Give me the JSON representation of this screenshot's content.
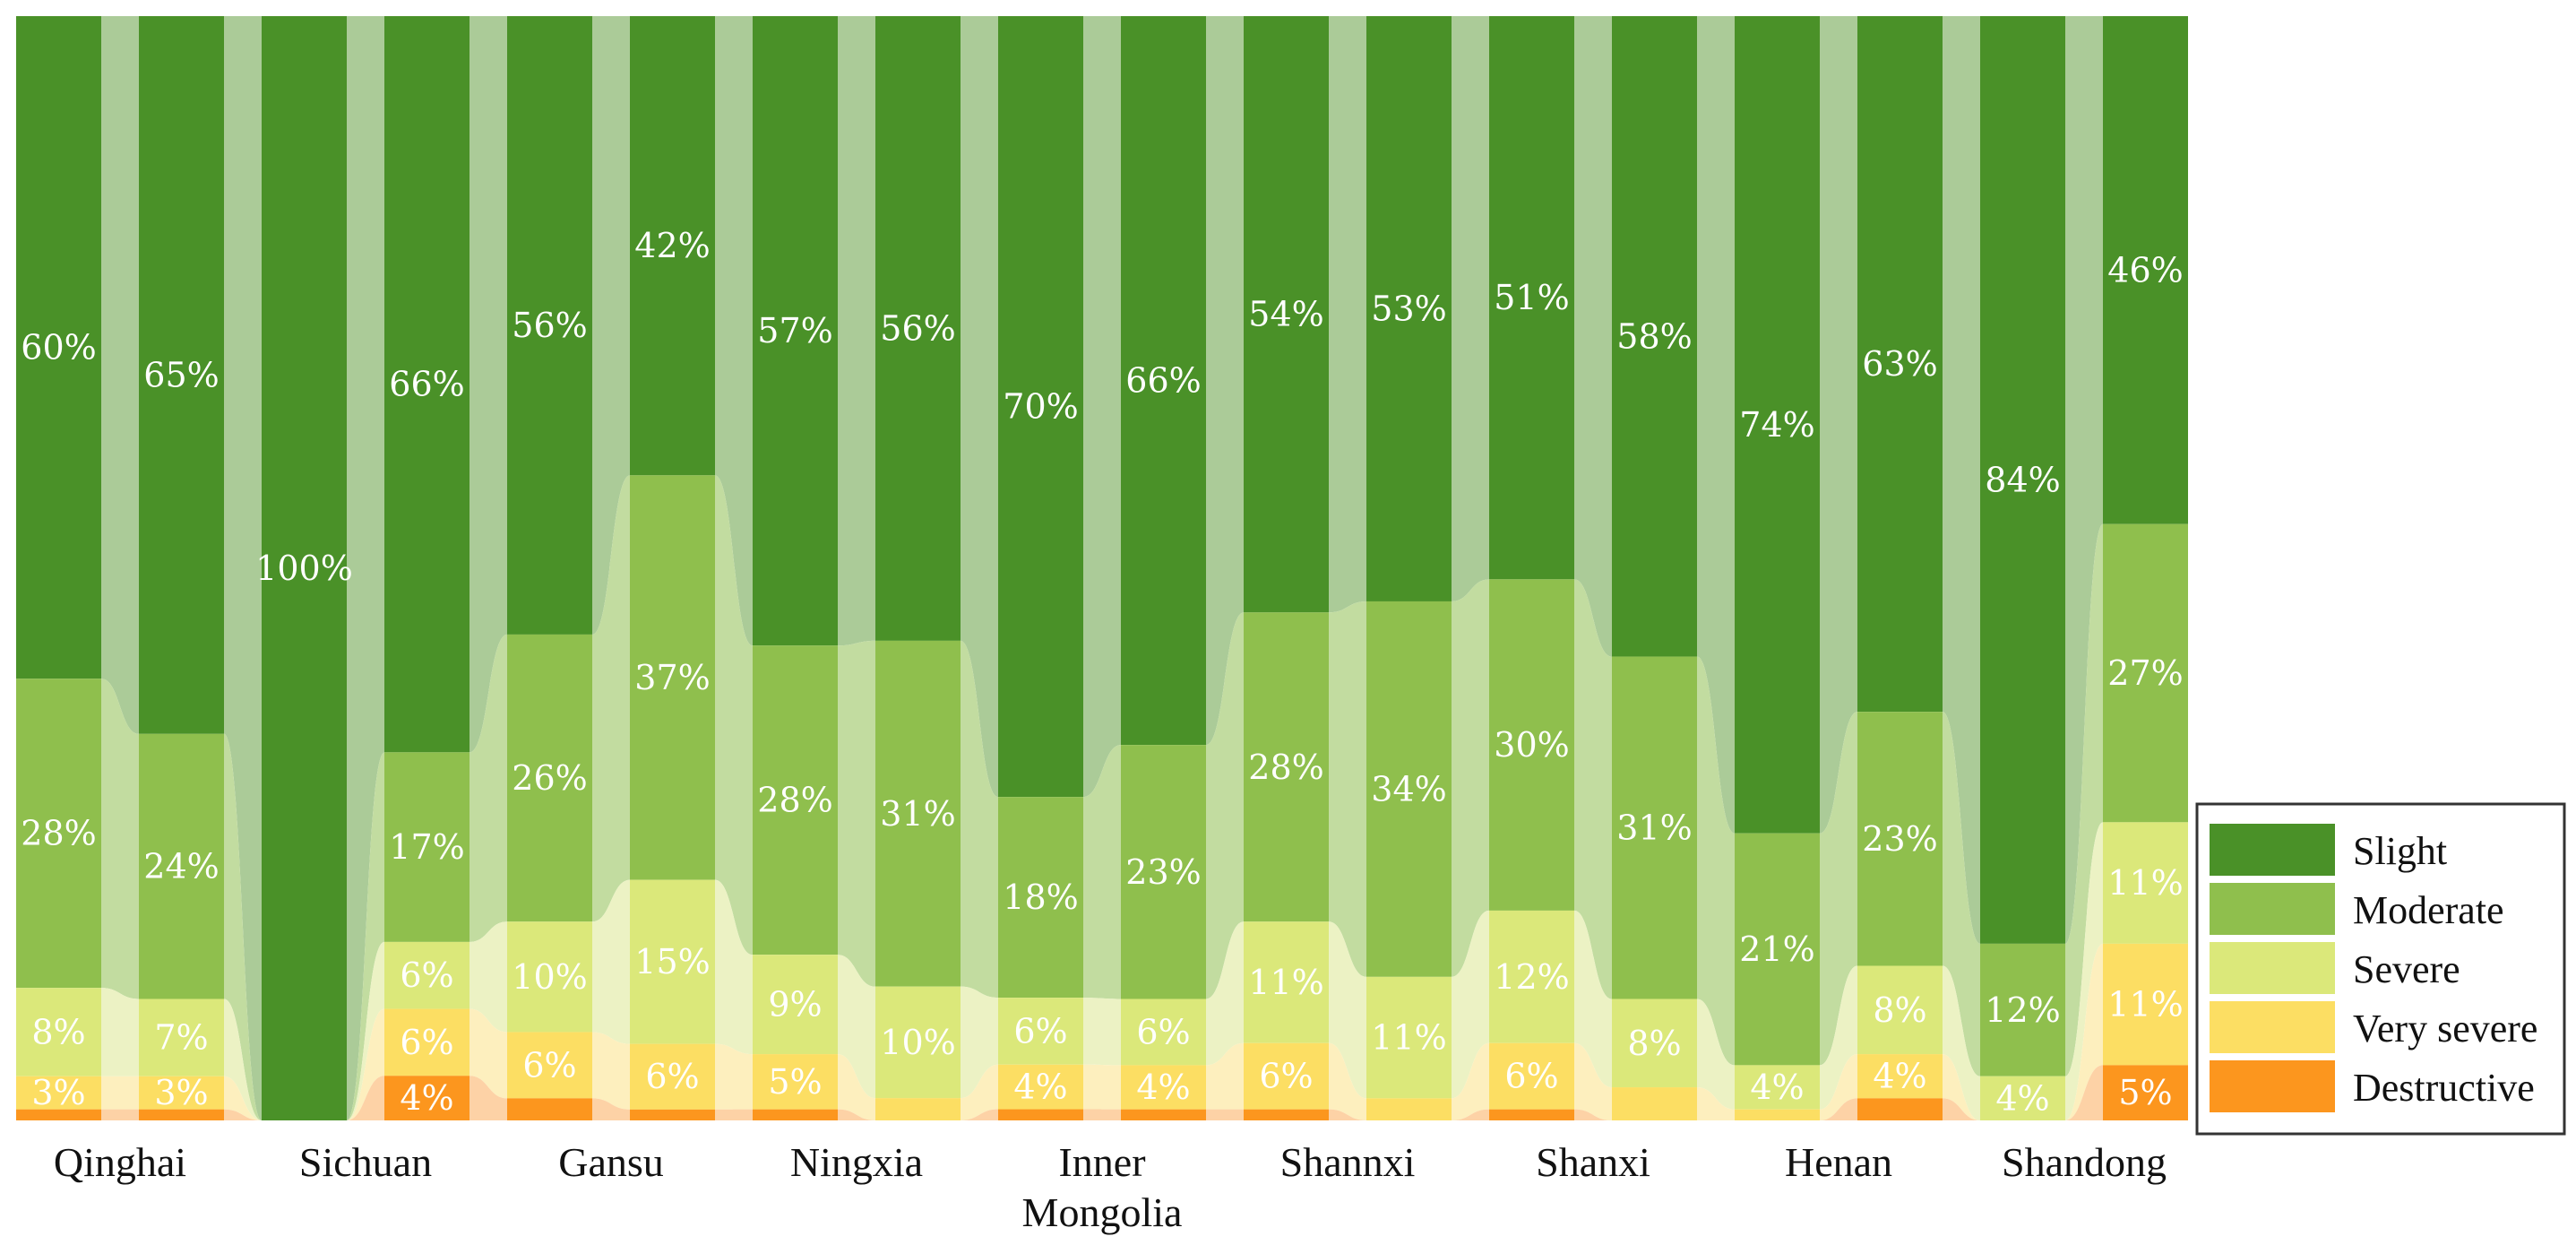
{
  "chart_data": {
    "type": "stacked-bar",
    "title": "",
    "xlabel": "",
    "ylabel": "",
    "ylim": [
      0,
      100
    ],
    "units": "%",
    "severity_levels": [
      "Slight",
      "Moderate",
      "Severe",
      "Very severe",
      "Destructive"
    ],
    "colors": {
      "Slight": "#4a9128",
      "Moderate": "#8fbf4d",
      "Severe": "#dbe87a",
      "Very severe": "#fcde63",
      "Destructive": "#fc961e"
    },
    "flow_colors": {
      "Slight": "#abcb98",
      "Moderate": "#c2dca0",
      "Severe": "#ecf2c4",
      "Very severe": "#fdefbe",
      "Destructive": "#fdd2a6"
    },
    "legend": {
      "position": "right",
      "entries": [
        "Slight",
        "Moderate",
        "Severe",
        "Very severe",
        "Destructive"
      ]
    },
    "categories": [
      {
        "label": "Qinghai",
        "label_lines": [
          "Qinghai"
        ]
      },
      {
        "label": "Sichuan",
        "label_lines": [
          "Sichuan"
        ]
      },
      {
        "label": "Gansu",
        "label_lines": [
          "Gansu"
        ]
      },
      {
        "label": "Ningxia",
        "label_lines": [
          "Ningxia"
        ]
      },
      {
        "label": "Inner Mongolia",
        "label_lines": [
          "Inner",
          "Mongolia"
        ]
      },
      {
        "label": "Shannxi",
        "label_lines": [
          "Shannxi"
        ]
      },
      {
        "label": "Shanxi",
        "label_lines": [
          "Shanxi"
        ]
      },
      {
        "label": "Henan",
        "label_lines": [
          "Henan"
        ]
      },
      {
        "label": "Shandong",
        "label_lines": [
          "Shandong"
        ]
      }
    ],
    "bars": [
      {
        "category": "Qinghai",
        "values": [
          60,
          28,
          8,
          3,
          1
        ],
        "labels": [
          "60%",
          "28%",
          "8%",
          "3%",
          ""
        ]
      },
      {
        "category": "Qinghai",
        "values": [
          65,
          24,
          7,
          3,
          1
        ],
        "labels": [
          "65%",
          "24%",
          "7%",
          "3%",
          ""
        ]
      },
      {
        "category": "Sichuan",
        "values": [
          100,
          0,
          0,
          0,
          0
        ],
        "labels": [
          "100%",
          "",
          "",
          "",
          ""
        ]
      },
      {
        "category": "Sichuan",
        "values": [
          66,
          17,
          6,
          6,
          4
        ],
        "labels": [
          "66%",
          "17%",
          "6%",
          "6%",
          "4%"
        ]
      },
      {
        "category": "Gansu",
        "values": [
          56,
          26,
          10,
          6,
          2
        ],
        "labels": [
          "56%",
          "26%",
          "10%",
          "6%",
          ""
        ]
      },
      {
        "category": "Gansu",
        "values": [
          42,
          37,
          15,
          6,
          1
        ],
        "labels": [
          "42%",
          "37%",
          "15%",
          "6%",
          ""
        ]
      },
      {
        "category": "Ningxia",
        "values": [
          57,
          28,
          9,
          5,
          1
        ],
        "labels": [
          "57%",
          "28%",
          "9%",
          "5%",
          ""
        ]
      },
      {
        "category": "Ningxia",
        "values": [
          56,
          31,
          10,
          2,
          0
        ],
        "labels": [
          "56%",
          "31%",
          "10%",
          "",
          ""
        ]
      },
      {
        "category": "Inner Mongolia",
        "values": [
          70,
          18,
          6,
          4,
          1
        ],
        "labels": [
          "70%",
          "18%",
          "6%",
          "4%",
          ""
        ]
      },
      {
        "category": "Inner Mongolia",
        "values": [
          66,
          23,
          6,
          4,
          1
        ],
        "labels": [
          "66%",
          "23%",
          "6%",
          "4%",
          ""
        ]
      },
      {
        "category": "Shannxi",
        "values": [
          54,
          28,
          11,
          6,
          1
        ],
        "labels": [
          "54%",
          "28%",
          "11%",
          "6%",
          ""
        ]
      },
      {
        "category": "Shannxi",
        "values": [
          53,
          34,
          11,
          2,
          0
        ],
        "labels": [
          "53%",
          "34%",
          "11%",
          "",
          ""
        ]
      },
      {
        "category": "Shanxi",
        "values": [
          51,
          30,
          12,
          6,
          1
        ],
        "labels": [
          "51%",
          "30%",
          "12%",
          "6%",
          ""
        ]
      },
      {
        "category": "Shanxi",
        "values": [
          58,
          31,
          8,
          3,
          0
        ],
        "labels": [
          "58%",
          "31%",
          "8%",
          "",
          ""
        ]
      },
      {
        "category": "Henan",
        "values": [
          74,
          21,
          4,
          1,
          0
        ],
        "labels": [
          "74%",
          "21%",
          "4%",
          "",
          ""
        ]
      },
      {
        "category": "Henan",
        "values": [
          63,
          23,
          8,
          4,
          2
        ],
        "labels": [
          "63%",
          "23%",
          "8%",
          "4%",
          ""
        ]
      },
      {
        "category": "Shandong",
        "values": [
          84,
          12,
          4,
          0,
          0
        ],
        "labels": [
          "84%",
          "12%",
          "4%",
          "",
          ""
        ]
      },
      {
        "category": "Shandong",
        "values": [
          46,
          27,
          11,
          11,
          5
        ],
        "labels": [
          "46%",
          "27%",
          "11%",
          "11%",
          "5%"
        ]
      }
    ]
  }
}
